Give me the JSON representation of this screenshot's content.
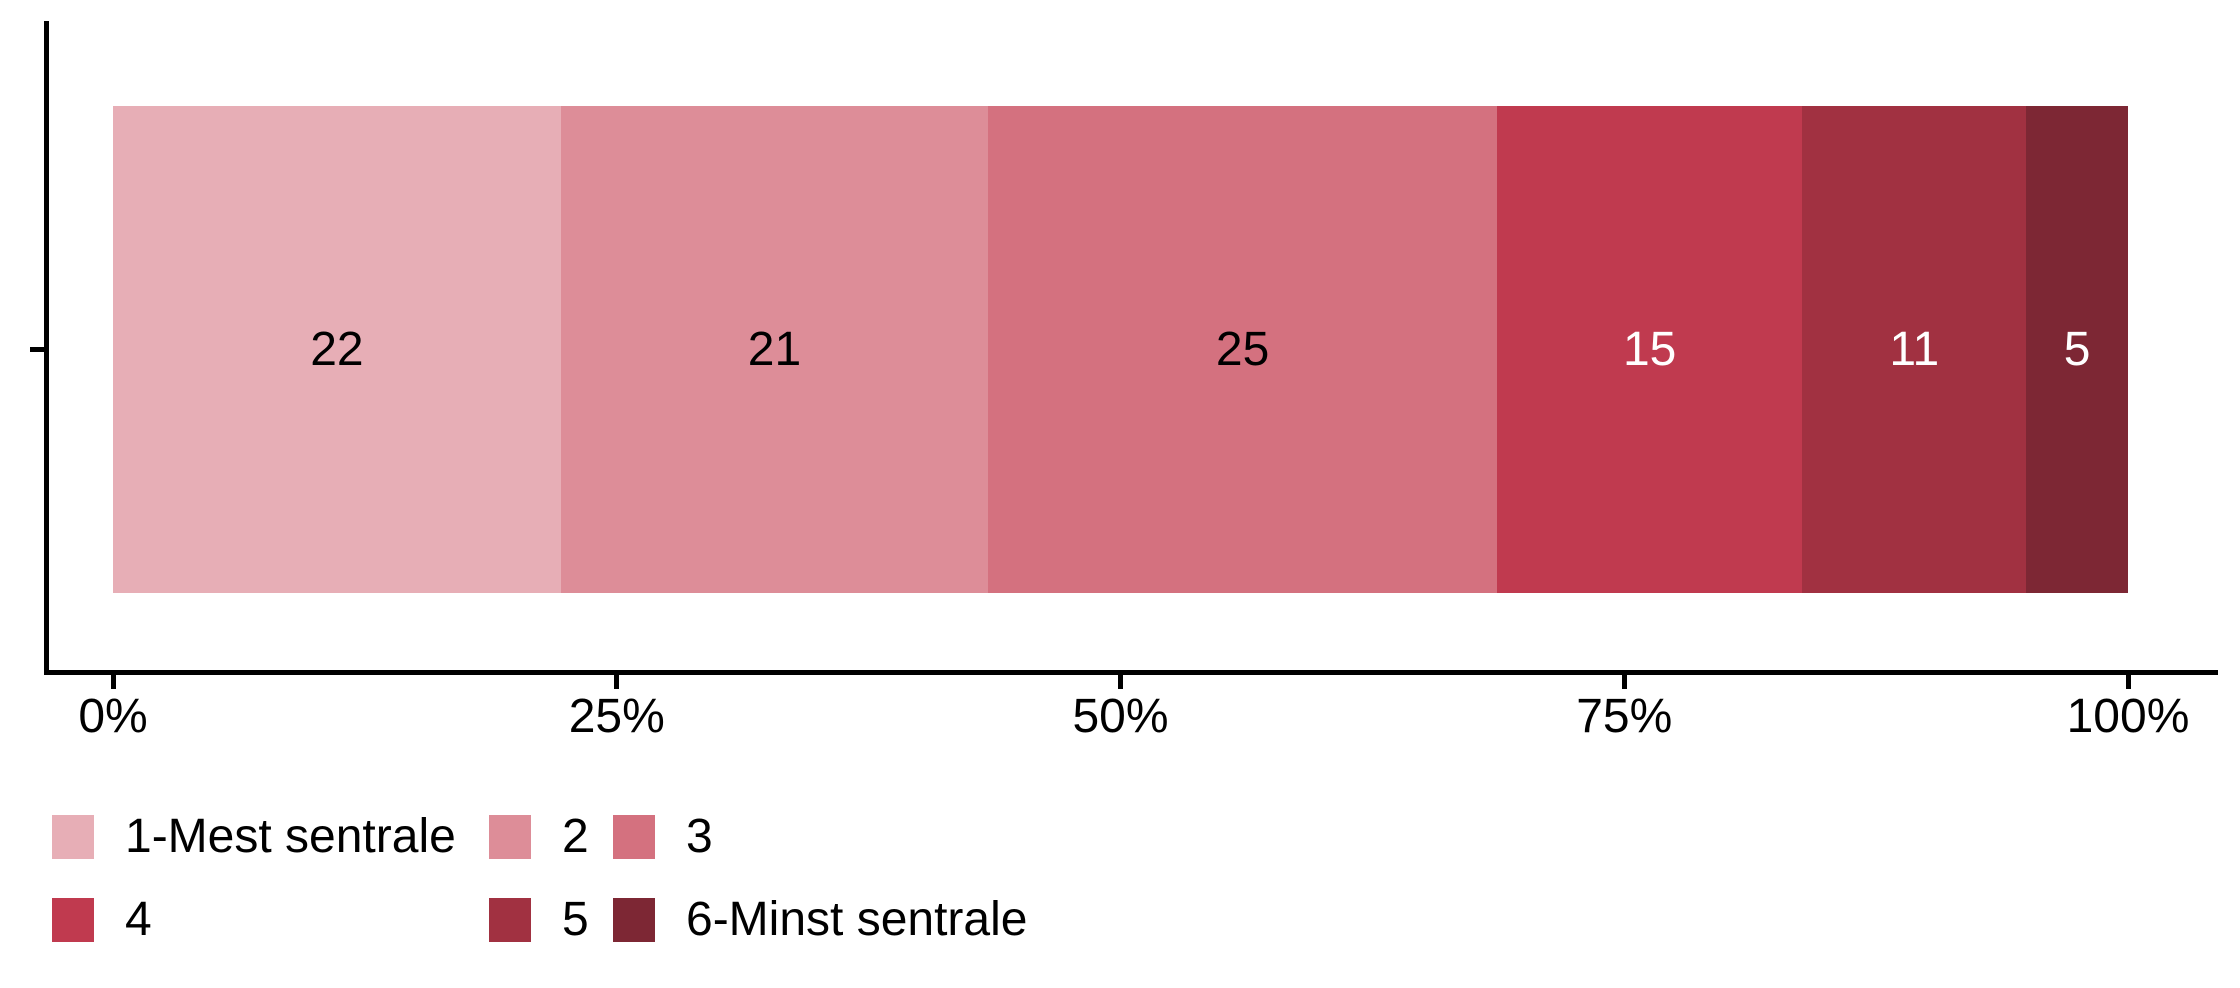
{
  "chart_data": {
    "type": "bar",
    "orientation": "horizontal",
    "stacking": "fill",
    "categories": [
      "1-Mest sentrale",
      "2",
      "3",
      "4",
      "5",
      "6-Minst sentrale"
    ],
    "values": [
      22,
      21,
      25,
      15,
      11,
      5
    ],
    "bar_labels": [
      "22",
      "21",
      "25",
      "15",
      "11",
      "5"
    ],
    "colors": [
      "#E7AEB6",
      "#DD8D98",
      "#D4717F",
      "#C03A4F",
      "#A13141",
      "#7D2734"
    ],
    "bar_label_colors": [
      "#000000",
      "#000000",
      "#000000",
      "#FFFFFF",
      "#FFFFFF",
      "#FFFFFF"
    ],
    "x_ticks": [
      {
        "label": "0%",
        "value": 0
      },
      {
        "label": "25%",
        "value": 25
      },
      {
        "label": "50%",
        "value": 50
      },
      {
        "label": "75%",
        "value": 75
      },
      {
        "label": "100%",
        "value": 100
      }
    ],
    "xlim": [
      0,
      100
    ],
    "grid": "off",
    "legend_position": "bottom",
    "legend_rows": [
      [
        0,
        1,
        2
      ],
      [
        3,
        4,
        5
      ]
    ],
    "axis_color": "#000000",
    "text_color": "#000000"
  }
}
